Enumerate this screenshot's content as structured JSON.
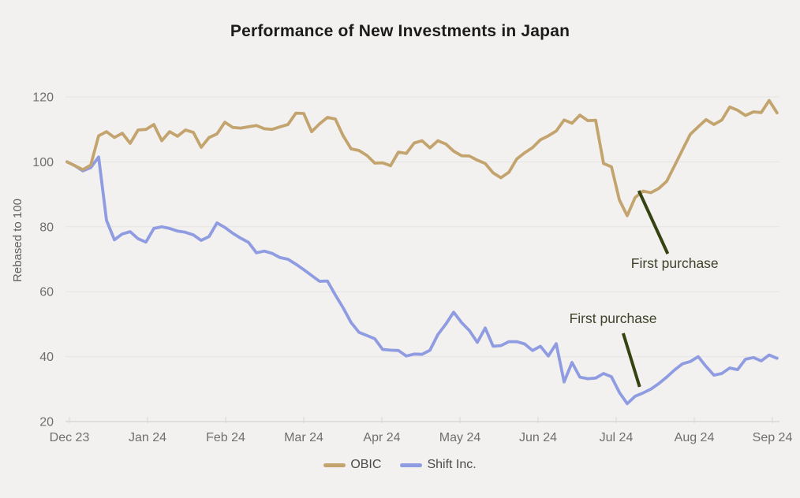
{
  "title": "Performance of New Investments in Japan",
  "chart_data": {
    "type": "line",
    "title": "Performance of New Investments in Japan",
    "xlabel": "",
    "ylabel": "Rebased to 100",
    "ylim": [
      20,
      120
    ],
    "y_ticks": [
      20,
      40,
      60,
      80,
      100,
      120
    ],
    "x_tick_labels": [
      "Dec 23",
      "Jan 24",
      "Feb 24",
      "Mar 24",
      "Apr 24",
      "May 24",
      "Jun 24",
      "Jul 24",
      "Aug 24",
      "Sep 24"
    ],
    "x_unit": "months since Dec 2023",
    "x_start": -0.03,
    "x_end": 9.06,
    "grid": true,
    "legend_position": "bottom",
    "series": [
      {
        "name": "OBIC",
        "color": "#c3a46e",
        "values": [
          100,
          98.8,
          97.6,
          99,
          108,
          109.3,
          107.5,
          108.8,
          105.7,
          109.8,
          110,
          111.5,
          106.5,
          109.3,
          107.9,
          109.8,
          109.1,
          104.5,
          107.5,
          108.6,
          112.2,
          110.6,
          110.4,
          110.8,
          111.2,
          110.2,
          110,
          110.8,
          111.5,
          115,
          114.9,
          109.3,
          111.7,
          113.7,
          113.2,
          108,
          104,
          103.5,
          102,
          99.6,
          99.7,
          98.8,
          103,
          102.6,
          105.8,
          106.5,
          104.3,
          106.5,
          105.5,
          103.3,
          101.9,
          101.8,
          100.5,
          99.5,
          96.6,
          95.1,
          96.8,
          100.9,
          102.8,
          104.4,
          106.8,
          108,
          109.5,
          112.9,
          111.9,
          114.4,
          112.7,
          112.8,
          99.5,
          98.5,
          88.3,
          83.4,
          89,
          91,
          90.5,
          91.8,
          94,
          98.8,
          103.7,
          108.5,
          110.8,
          113,
          111.5,
          112.9,
          116.9,
          115.9,
          114.3,
          115.4,
          115.2,
          118.9,
          115.1
        ]
      },
      {
        "name": "Shift Inc.",
        "color": "#909ce1",
        "values": [
          100,
          98.8,
          97.2,
          98.2,
          101.5,
          82,
          76,
          77.8,
          78.5,
          76.3,
          75.3,
          79.5,
          80,
          79.5,
          78.7,
          78.3,
          77.5,
          75.8,
          77,
          81.2,
          79.8,
          78,
          76.5,
          75.2,
          72,
          72.5,
          71.8,
          70.5,
          70,
          68.5,
          66.8,
          65,
          63.2,
          63.3,
          59,
          55,
          50.5,
          47.5,
          46.5,
          45.5,
          42.2,
          42,
          41.9,
          40.2,
          40.8,
          40.7,
          42,
          46.8,
          50,
          53.7,
          50.5,
          48,
          44.4,
          48.8,
          43.2,
          43.4,
          44.6,
          44.6,
          43.9,
          41.9,
          43.2,
          40.2,
          44,
          32.2,
          38.2,
          33.7,
          33.2,
          33.4,
          34.8,
          33.8,
          29,
          25.5,
          27.8,
          28.8,
          30,
          31.7,
          33.7,
          35.9,
          37.8,
          38.5,
          40,
          37,
          34.3,
          34.8,
          36.5,
          36,
          39.2,
          39.7,
          38.7,
          40.5,
          39.5
        ]
      }
    ],
    "annotations": [
      {
        "label": "First purchase",
        "series": "OBIC",
        "line": [
          7.29,
          91.1,
          7.66,
          71.7
        ],
        "text": [
          7.19,
          67.3
        ]
      },
      {
        "label": "First purchase",
        "series": "Shift Inc.",
        "line": [
          7.09,
          47.2,
          7.3,
          30.7
        ],
        "text": [
          6.4,
          50.3
        ]
      }
    ],
    "annotation_color": "#344311",
    "annotation_text_color": "#3d4229"
  },
  "colors": {
    "background": "#f2f1ef",
    "grid": "#e6e5e2",
    "axis": "#d9d8d5",
    "tick_label": "#6f6f6f",
    "axis_title": "#5f5f5f",
    "title": "#1b1b1b"
  }
}
